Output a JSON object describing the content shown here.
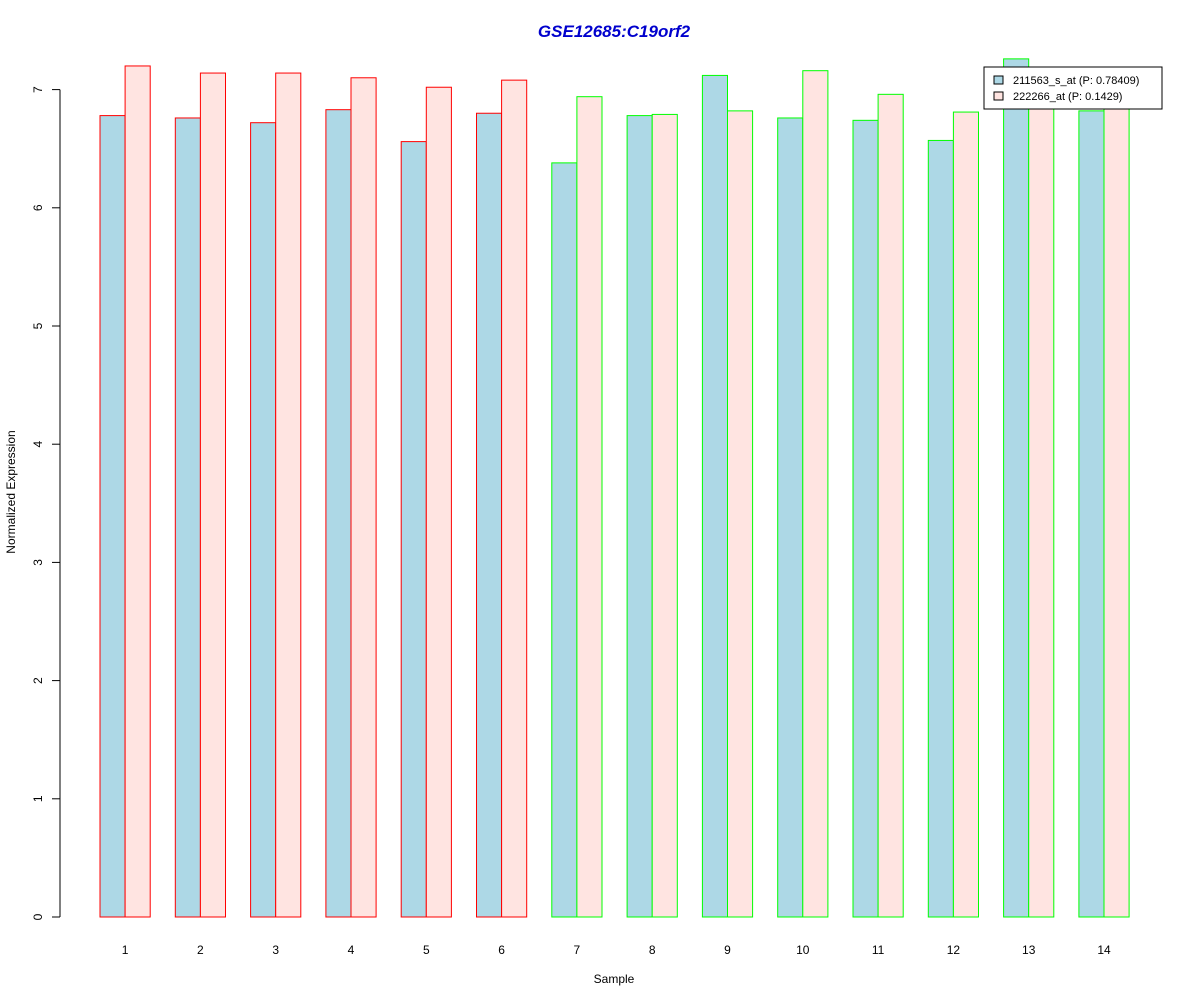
{
  "chart_data": {
    "type": "bar",
    "title": "GSE12685:C19orf2",
    "xlabel": "Sample",
    "ylabel": "Normalized Expression",
    "ylim": [
      0,
      7.2
    ],
    "yticks": [
      "0",
      "1",
      "2",
      "3",
      "4",
      "5",
      "6",
      "7"
    ],
    "categories": [
      "1",
      "2",
      "3",
      "4",
      "5",
      "6",
      "7",
      "8",
      "9",
      "10",
      "11",
      "12",
      "13",
      "14"
    ],
    "series": [
      {
        "name": "211563_s_at (P: 0.78409)",
        "fill": "#add8e6",
        "values": [
          6.78,
          6.76,
          6.72,
          6.83,
          6.56,
          6.8,
          6.38,
          6.78,
          7.12,
          6.76,
          6.74,
          6.57,
          7.26,
          6.82
        ]
      },
      {
        "name": "222266_at (P: 0.1429)",
        "fill": "#ffe4e1",
        "values": [
          7.2,
          7.14,
          7.14,
          7.1,
          7.02,
          7.08,
          6.94,
          6.79,
          6.82,
          7.16,
          6.96,
          6.81,
          6.94,
          6.94
        ]
      }
    ],
    "group_border_colors": [
      "#ff0000",
      "#ff0000",
      "#ff0000",
      "#ff0000",
      "#ff0000",
      "#ff0000",
      "#00ff00",
      "#00ff00",
      "#00ff00",
      "#00ff00",
      "#00ff00",
      "#00ff00",
      "#00ff00",
      "#00ff00"
    ],
    "title_color": "#0000cd",
    "legend_position": "top-right",
    "grid": false
  }
}
